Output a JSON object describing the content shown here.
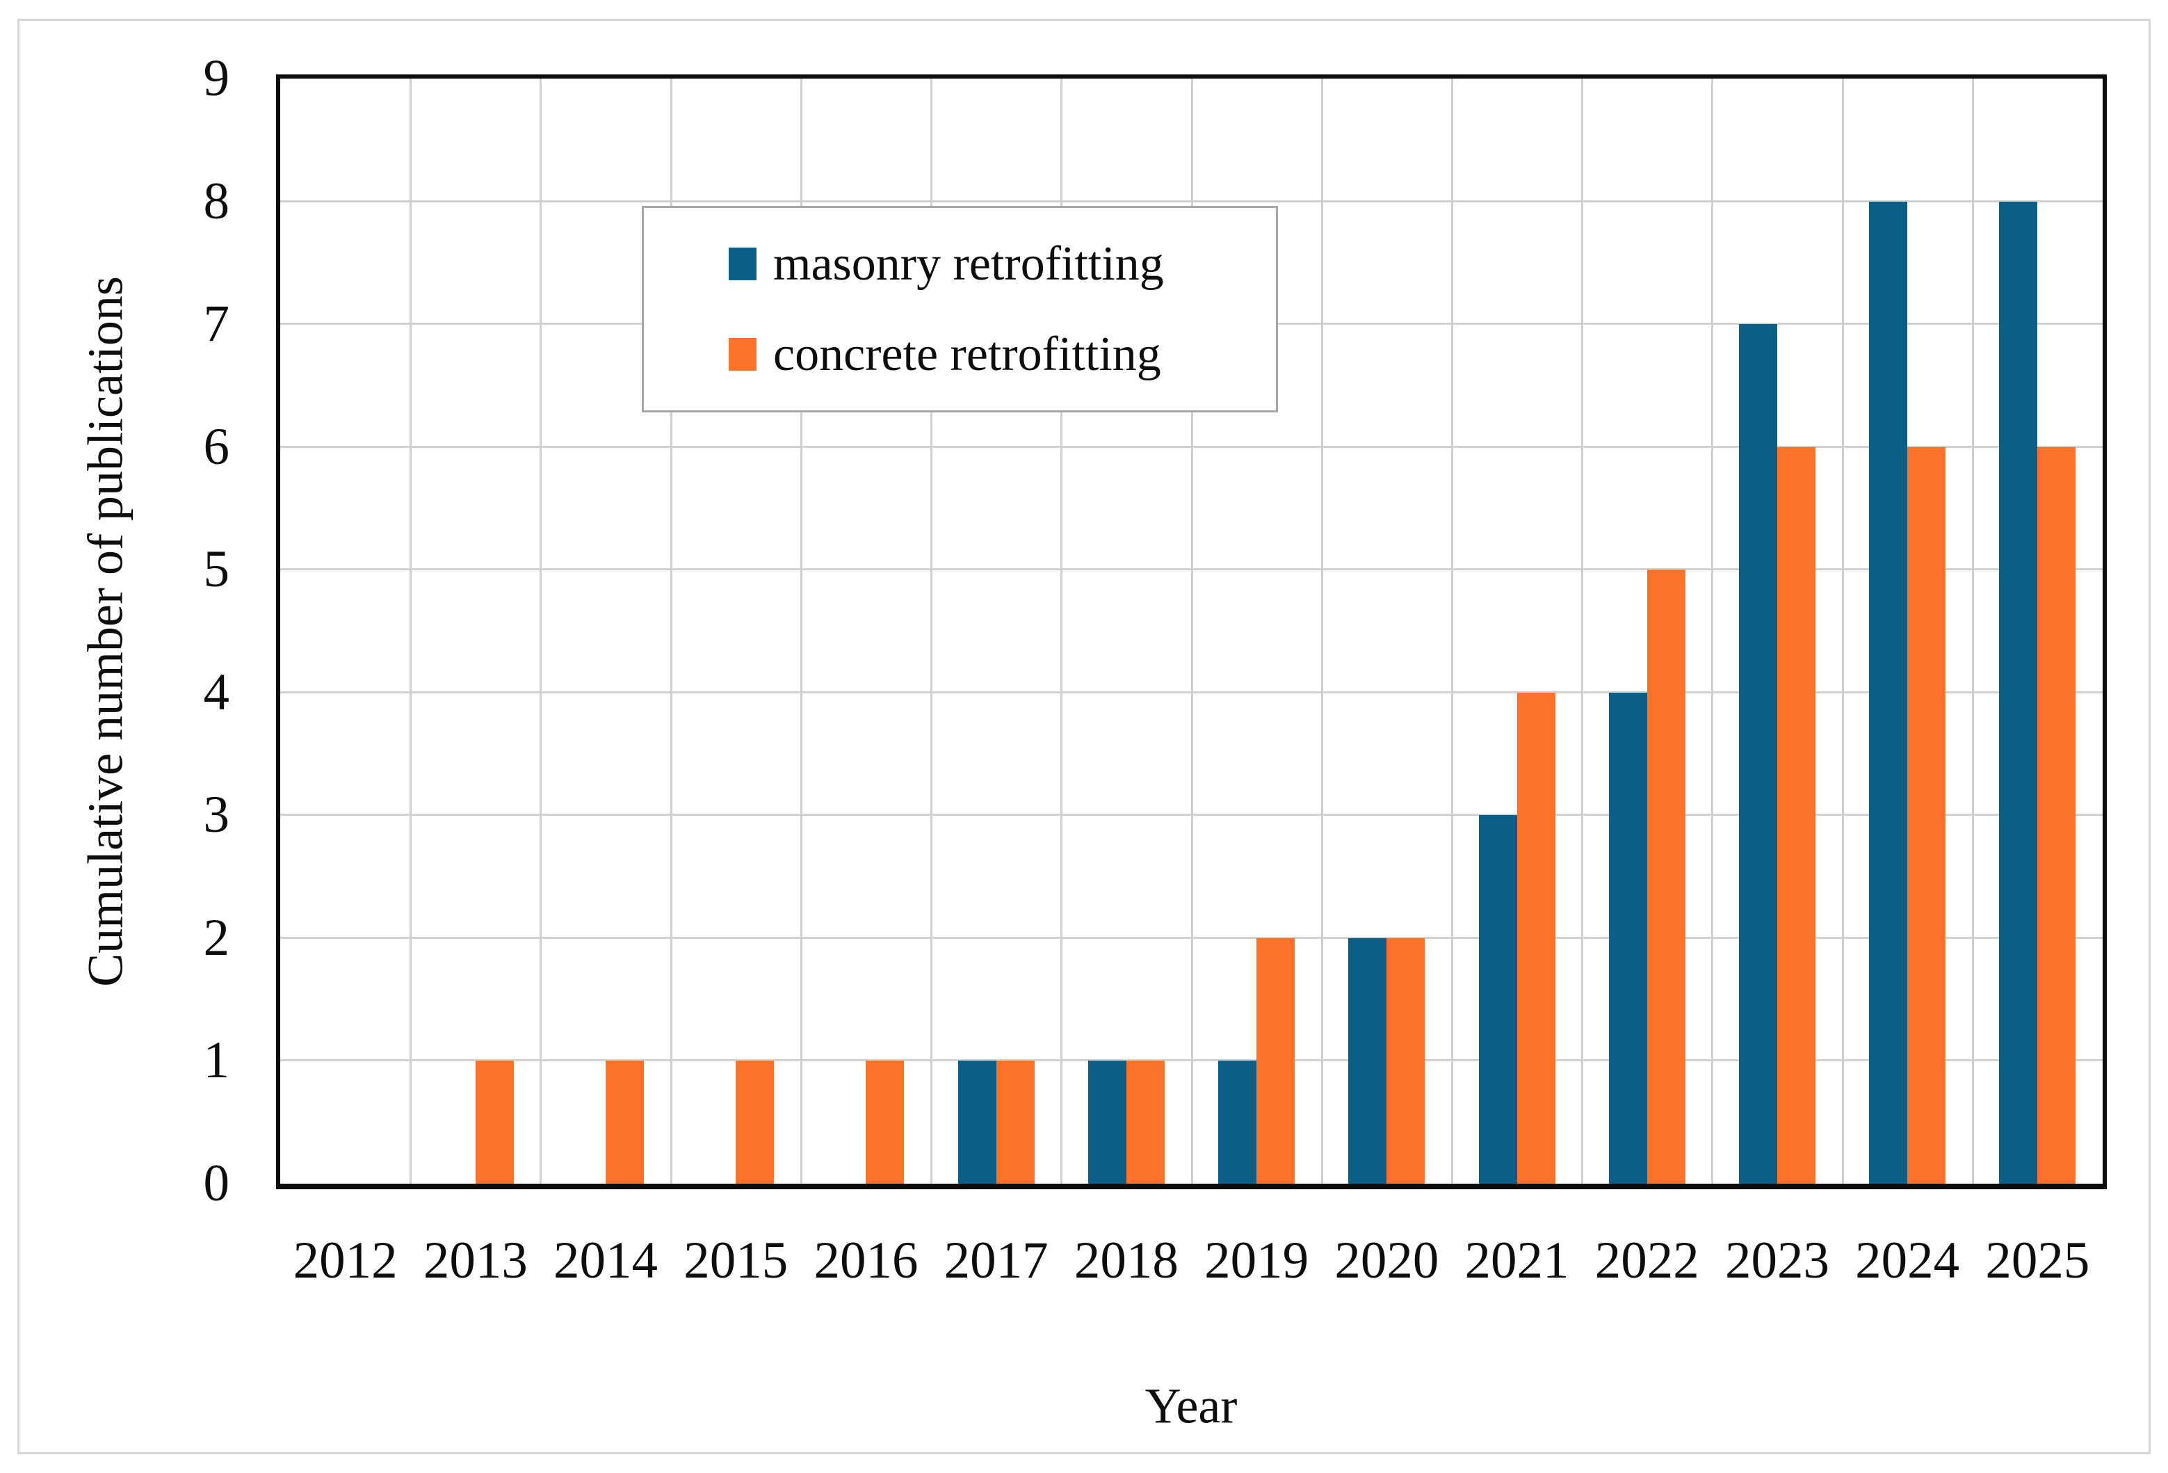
{
  "figure": {
    "background_color": "#ffffff",
    "border_color": "#d7d7d7"
  },
  "chart_data": {
    "type": "bar",
    "title": "",
    "xlabel": "Year",
    "ylabel": "Cumulative number of publications",
    "categories": [
      "2012",
      "2013",
      "2014",
      "2015",
      "2016",
      "2017",
      "2018",
      "2019",
      "2020",
      "2021",
      "2022",
      "2023",
      "2024",
      "2025"
    ],
    "series": [
      {
        "name": "masonry retrofitting",
        "color": "#0B5F85",
        "values": [
          0,
          0,
          0,
          0,
          0,
          1,
          1,
          1,
          2,
          3,
          4,
          7,
          8,
          8
        ]
      },
      {
        "name": "concrete retrofitting",
        "color": "#FA7328",
        "values": [
          0,
          1,
          1,
          1,
          1,
          1,
          1,
          2,
          2,
          4,
          5,
          6,
          6,
          6
        ]
      }
    ],
    "ylim": [
      0,
      9
    ],
    "yticks": [
      0,
      1,
      2,
      3,
      4,
      5,
      6,
      7,
      8,
      9
    ],
    "grid": "both",
    "gridline_color": "#d2d2d2",
    "axis_color": "#0d0d0d",
    "legend_position": "top-left",
    "legend_border_color": "#a6a6a6"
  }
}
